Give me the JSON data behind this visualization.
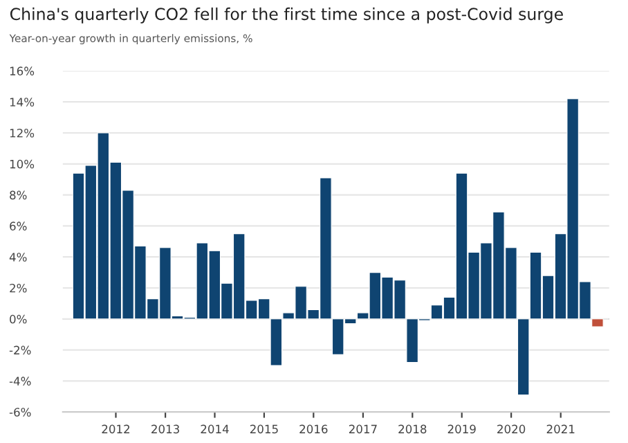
{
  "chart_data": {
    "type": "bar",
    "title": "China's quarterly CO2 fell for the first time since a post-Covid surge",
    "subtitle": "Year-on-year growth in quarterly emissions, %",
    "x": [
      "2011-03-31",
      "2011-06-30",
      "2011-09-30",
      "2011-12-31",
      "2012-03-31",
      "2012-06-30",
      "2012-09-30",
      "2012-12-31",
      "2013-03-31",
      "2013-06-30",
      "2013-09-30",
      "2013-12-31",
      "2014-03-31",
      "2014-06-30",
      "2014-09-30",
      "2014-12-31",
      "2015-03-31",
      "2015-06-30",
      "2015-09-30",
      "2015-12-31",
      "2016-03-31",
      "2016-06-30",
      "2016-09-30",
      "2016-12-31",
      "2017-03-31",
      "2017-06-30",
      "2017-09-30",
      "2017-12-31",
      "2018-03-31",
      "2018-06-30",
      "2018-09-30",
      "2018-12-31",
      "2019-03-31",
      "2019-06-30",
      "2019-09-30",
      "2019-12-31",
      "2020-03-31",
      "2020-06-30",
      "2020-09-30",
      "2020-12-31",
      "2021-03-31",
      "2021-06-30",
      "2021-09-30"
    ],
    "values": [
      9.4,
      9.9,
      12.0,
      10.1,
      8.3,
      4.7,
      1.3,
      4.6,
      0.2,
      0.1,
      4.9,
      4.4,
      2.3,
      5.5,
      1.2,
      1.3,
      -3.0,
      0.4,
      2.1,
      0.6,
      9.1,
      -2.3,
      -0.3,
      0.4,
      3.0,
      2.7,
      2.5,
      -2.8,
      -0.1,
      0.9,
      1.4,
      9.4,
      4.3,
      4.9,
      6.9,
      4.6,
      -4.9,
      4.3,
      2.8,
      5.5,
      14.2,
      2.4,
      -0.5
    ],
    "colors": [
      "#0f4471",
      "#0f4471",
      "#0f4471",
      "#0f4471",
      "#0f4471",
      "#0f4471",
      "#0f4471",
      "#0f4471",
      "#0f4471",
      "#0f4471",
      "#0f4471",
      "#0f4471",
      "#0f4471",
      "#0f4471",
      "#0f4471",
      "#0f4471",
      "#0f4471",
      "#0f4471",
      "#0f4471",
      "#0f4471",
      "#0f4471",
      "#0f4471",
      "#0f4471",
      "#0f4471",
      "#0f4471",
      "#0f4471",
      "#0f4471",
      "#0f4471",
      "#0f4471",
      "#0f4471",
      "#0f4471",
      "#0f4471",
      "#0f4471",
      "#0f4471",
      "#0f4471",
      "#0f4471",
      "#0f4471",
      "#0f4471",
      "#0f4471",
      "#0f4471",
      "#0f4471",
      "#0f4471",
      "#c0503a"
    ],
    "xlim": [
      "2010-12-05",
      "2021-12-25"
    ],
    "xticks": [
      {
        "value": "2012-01-01",
        "label": "2012"
      },
      {
        "value": "2013-01-01",
        "label": "2013"
      },
      {
        "value": "2014-01-01",
        "label": "2014"
      },
      {
        "value": "2015-01-01",
        "label": "2015"
      },
      {
        "value": "2016-01-01",
        "label": "2016"
      },
      {
        "value": "2017-01-01",
        "label": "2017"
      },
      {
        "value": "2018-01-01",
        "label": "2018"
      },
      {
        "value": "2019-01-01",
        "label": "2019"
      },
      {
        "value": "2020-01-01",
        "label": "2020"
      },
      {
        "value": "2021-01-01",
        "label": "2021"
      }
    ],
    "ylim": [
      -6,
      16
    ],
    "yticks": [
      {
        "value": -6,
        "label": "-6%"
      },
      {
        "value": -4,
        "label": "-4%"
      },
      {
        "value": -2,
        "label": "-2%"
      },
      {
        "value": 0,
        "label": "0%"
      },
      {
        "value": 2,
        "label": "2%"
      },
      {
        "value": 4,
        "label": "4%"
      },
      {
        "value": 6,
        "label": "6%"
      },
      {
        "value": 8,
        "label": "8%"
      },
      {
        "value": 10,
        "label": "10%"
      },
      {
        "value": 12,
        "label": "12%"
      },
      {
        "value": 14,
        "label": "14%"
      },
      {
        "value": 16,
        "label": "16%"
      }
    ],
    "grid": "y"
  }
}
